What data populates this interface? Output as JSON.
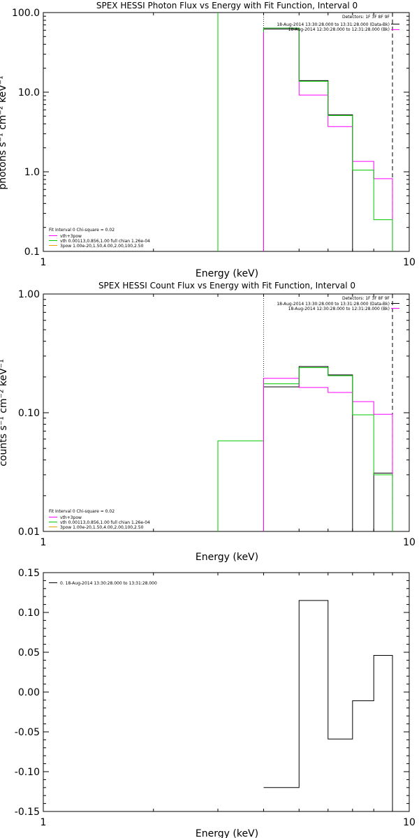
{
  "chart_data": [
    {
      "type": "line",
      "title": "SPEX HESSI Photon Flux vs Energy with Fit Function, Interval 0",
      "xlabel": "Energy (keV)",
      "ylabel": "photons s⁻¹ cm⁻² keV⁻¹",
      "xscale": "log",
      "yscale": "log",
      "xlim": [
        1,
        10
      ],
      "ylim": [
        0.1,
        100
      ],
      "x_ticks": [
        "1",
        "10"
      ],
      "y_ticks": [
        "0.1",
        "1.0",
        "10.0",
        "100.0"
      ],
      "edges": [
        3,
        4,
        5,
        6,
        7,
        8,
        9
      ],
      "series": [
        {
          "color": "#000000",
          "values": [
            null,
            62,
            14,
            5.2,
            null,
            null
          ]
        },
        {
          "color": "#ff00ff",
          "values": [
            null,
            64,
            9.2,
            3.7,
            1.35,
            0.82
          ]
        },
        {
          "color": "#00c800",
          "values": [
            null,
            64,
            13.7,
            5.1,
            1.05,
            0.25
          ]
        }
      ],
      "range_lines": [
        4,
        9
      ],
      "info_lines": [
        "Detectors: 1F 3F 8F 9F",
        "18-Aug-2014 13:30:28.000 to 13:31:28.000 (Data-Bk)",
        "18-Aug-2014 12:30:28.000 to 12:31:28.000 (Bk)"
      ],
      "legend": {
        "header": "Fit Interval 0   Chi-square = 0.02",
        "items": [
          {
            "label": "vth+3pow",
            "color": "#ff00ff"
          },
          {
            "label": "vth 0.00113,0.856,1.00  full chian 1.26e-04",
            "color": "#00c800"
          },
          {
            "label": "3pow 1.00e-20,1.50,4.00,2.00,100,2.50",
            "color": "#e8a000"
          }
        ]
      }
    },
    {
      "type": "line",
      "title": "SPEX HESSI Count Flux vs Energy with Fit Function, Interval 0",
      "xlabel": "Energy (keV)",
      "ylabel": "counts s⁻¹ cm⁻² keV⁻¹",
      "xscale": "log",
      "yscale": "log",
      "xlim": [
        1,
        10
      ],
      "ylim": [
        0.01,
        1
      ],
      "x_ticks": [
        "1",
        "10"
      ],
      "y_ticks": [
        "0.01",
        "0.10",
        "1.00"
      ],
      "edges": [
        3,
        4,
        5,
        6,
        7,
        8,
        9
      ],
      "series": [
        {
          "color": "#000000",
          "values": [
            null,
            0.165,
            0.245,
            0.208,
            null,
            0.031
          ]
        },
        {
          "color": "#ff00ff",
          "values": [
            null,
            0.195,
            0.163,
            0.148,
            0.124,
            0.097
          ]
        },
        {
          "color": "#00c800",
          "values": [
            0.058,
            0.175,
            0.24,
            0.205,
            0.096,
            0.03
          ]
        }
      ],
      "range_lines": [
        4,
        9
      ],
      "info_lines": [
        "Detectors: 1F 3F 8F 9F",
        "18-Aug-2014 13:30:28.000 to 13:31:28.000 (Data-Bk)",
        "18-Aug-2014 12:30:28.000 to 12:31:28.000 (Bk)"
      ],
      "legend": {
        "header": "Fit Interval 0   Chi-square = 0.02",
        "items": [
          {
            "label": "vth+3pow",
            "color": "#ff00ff"
          },
          {
            "label": "vth 0.00113,0.856,1.00  full chian 1.26e-04",
            "color": "#00c800"
          },
          {
            "label": "3pow 1.00e-20,1.50,4.00,2.00,100,2.50",
            "color": "#e8a000"
          }
        ]
      }
    },
    {
      "type": "line",
      "title": "",
      "xlabel": "Energy (keV)",
      "ylabel": "",
      "xscale": "log",
      "yscale": "linear",
      "xlim": [
        1,
        10
      ],
      "ylim": [
        -0.15,
        0.15
      ],
      "x_ticks": [
        "1",
        "10"
      ],
      "y_ticks": [
        "-0.15",
        "-0.10",
        "-0.05",
        "0.00",
        "0.05",
        "0.10",
        "0.15"
      ],
      "edges": [
        4,
        5,
        6,
        7,
        8,
        9
      ],
      "series": [
        {
          "color": "#000000",
          "values": [
            -0.12,
            0.115,
            -0.059,
            -0.011,
            0.046
          ]
        }
      ],
      "legend": {
        "header": "",
        "items": [
          {
            "label": "0. 18-Aug-2014 13:30:28.000 to 13:31:28.000",
            "color": "#000000"
          }
        ]
      }
    }
  ]
}
